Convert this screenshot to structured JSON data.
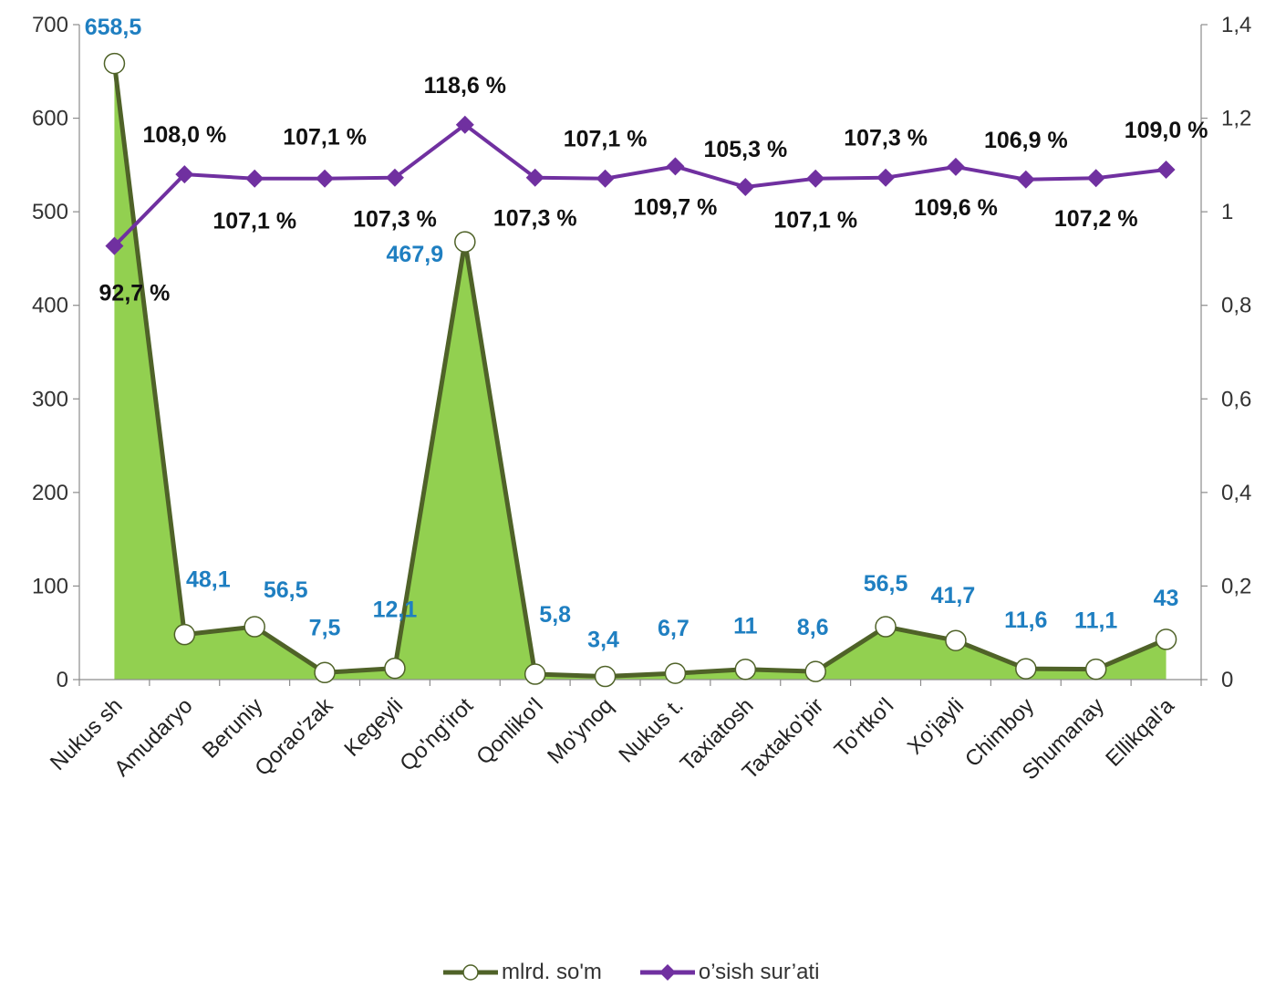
{
  "chart_data": {
    "type": "area+line",
    "categories": [
      "Nukus sh",
      "Amudaryo",
      "Beruniy",
      "Qorao'zak",
      "Kegeyli",
      "Qo'ng'irot",
      "Qonliko'l",
      "Mo'ynoq",
      "Nukus t.",
      "Taxiatosh",
      "Taxtako'pir",
      "To'rtko'l",
      "Xo'jayli",
      "Chimboy",
      "Shumanay",
      "Ellikqal'a"
    ],
    "series": [
      {
        "name": "mlrd. so'm",
        "axis": "left",
        "style": "area with hollow circle markers",
        "values": [
          658.5,
          48.1,
          56.5,
          7.5,
          12.1,
          467.9,
          5.8,
          3.4,
          6.7,
          11,
          8.6,
          56.5,
          41.7,
          11.6,
          11.1,
          43
        ],
        "labels": [
          "658,5",
          "48,1",
          "56,5",
          "7,5",
          "12,1",
          "467,9",
          "5,8",
          "3,4",
          "6,7",
          "11",
          "8,6",
          "56,5",
          "41,7",
          "11,6",
          "11,1",
          "43"
        ],
        "color": "#92d050",
        "line_color": "#4f6228",
        "label_color": "#1f7fc1"
      },
      {
        "name": "o'sish sur'ati",
        "axis": "right",
        "style": "line with diamond markers",
        "values": [
          0.927,
          1.08,
          1.071,
          1.071,
          1.073,
          1.186,
          1.073,
          1.071,
          1.097,
          1.053,
          1.071,
          1.073,
          1.096,
          1.069,
          1.072,
          1.09
        ],
        "labels": [
          "92,7 %",
          "108,0 %",
          "107,1 %",
          "107,1 %",
          "107,3 %",
          "118,6 %",
          "107,3 %",
          "107,1 %",
          "109,7 %",
          "105,3 %",
          "107,1 %",
          "107,3 %",
          "109,6 %",
          "106,9 %",
          "107,2 %",
          "109,0 %"
        ],
        "color": "#7030a0",
        "label_color": "#111111"
      }
    ],
    "y_left": {
      "ylim": [
        0,
        700
      ],
      "ticks": [
        "0",
        "100",
        "200",
        "300",
        "400",
        "500",
        "600",
        "700"
      ]
    },
    "y_right": {
      "ylim": [
        0,
        1.4
      ],
      "ticks": [
        "0",
        "0,2",
        "0,4",
        "0,6",
        "0,8",
        "1",
        "1,2",
        "1,4"
      ]
    },
    "grid": false,
    "legend": {
      "position": "bottom",
      "entries": [
        "mlrd. so'm",
        "o’sish sur’ati"
      ]
    }
  }
}
